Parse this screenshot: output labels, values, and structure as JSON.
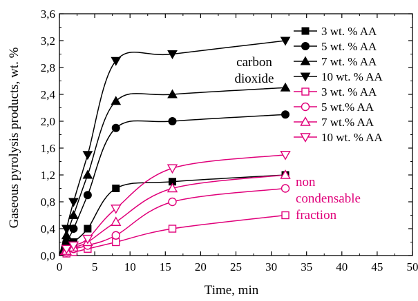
{
  "colors": {
    "black": "#000000",
    "magenta": "#e0007a"
  },
  "chart_data": {
    "type": "scatter",
    "xlabel": "Time, min",
    "ylabel": "Gaseous pyrolysis products, wt. %",
    "xlim": [
      0,
      50
    ],
    "ylim": [
      0,
      3.6
    ],
    "x_ticks": [
      "0",
      "5",
      "10",
      "15",
      "20",
      "25",
      "30",
      "35",
      "40",
      "45",
      "50"
    ],
    "y_ticks": [
      "0,0",
      "0,4",
      "0,8",
      "1,2",
      "1,6",
      "2,0",
      "2,4",
      "2,8",
      "3,2",
      "3,6"
    ],
    "grid": false,
    "legend_position": "right",
    "series": [
      {
        "name": "3 wt. % AA",
        "group": "carbon dioxide",
        "color": "black",
        "marker": "square",
        "filled": true,
        "x": [
          1,
          2,
          4,
          8,
          16,
          32
        ],
        "y": [
          0.1,
          0.2,
          0.4,
          1.0,
          1.1,
          1.2
        ]
      },
      {
        "name": "5 wt. % AA",
        "group": "carbon dioxide",
        "color": "black",
        "marker": "circle",
        "filled": true,
        "x": [
          1,
          2,
          4,
          8,
          16,
          32
        ],
        "y": [
          0.2,
          0.4,
          0.9,
          1.9,
          2.0,
          2.1
        ]
      },
      {
        "name": "7 wt. % AA",
        "group": "carbon dioxide",
        "color": "black",
        "marker": "triangle-up",
        "filled": true,
        "x": [
          1,
          2,
          4,
          8,
          16,
          32
        ],
        "y": [
          0.3,
          0.6,
          1.2,
          2.3,
          2.4,
          2.5
        ]
      },
      {
        "name": "10 wt. % AA",
        "group": "carbon dioxide",
        "color": "black",
        "marker": "triangle-down",
        "filled": true,
        "x": [
          1,
          2,
          4,
          8,
          16,
          32
        ],
        "y": [
          0.4,
          0.8,
          1.5,
          2.9,
          3.0,
          3.2
        ]
      },
      {
        "name": "3 wt. % AA",
        "group": "non condensable fraction",
        "color": "magenta",
        "marker": "square",
        "filled": false,
        "x": [
          1,
          2,
          4,
          8,
          16,
          32
        ],
        "y": [
          0.03,
          0.05,
          0.1,
          0.2,
          0.4,
          0.6
        ]
      },
      {
        "name": "5 wt.% AA",
        "group": "non condensable fraction",
        "color": "magenta",
        "marker": "circle",
        "filled": false,
        "x": [
          1,
          2,
          4,
          8,
          16,
          32
        ],
        "y": [
          0.05,
          0.1,
          0.15,
          0.3,
          0.8,
          1.0
        ]
      },
      {
        "name": "7 wt.% AA",
        "group": "non condensable fraction",
        "color": "magenta",
        "marker": "triangle-up",
        "filled": false,
        "x": [
          1,
          2,
          4,
          8,
          16,
          32
        ],
        "y": [
          0.07,
          0.12,
          0.2,
          0.5,
          1.0,
          1.2
        ]
      },
      {
        "name": "10 wt. % AA",
        "group": "non condensable fraction",
        "color": "magenta",
        "marker": "triangle-down",
        "filled": false,
        "x": [
          1,
          2,
          4,
          8,
          16,
          32
        ],
        "y": [
          0.1,
          0.15,
          0.25,
          0.7,
          1.3,
          1.5
        ]
      }
    ],
    "annotations": [
      {
        "lines": [
          "carbon",
          "dioxide"
        ],
        "color": "black"
      },
      {
        "lines": [
          "non",
          "condensable",
          "fraction"
        ],
        "color": "magenta"
      }
    ]
  }
}
